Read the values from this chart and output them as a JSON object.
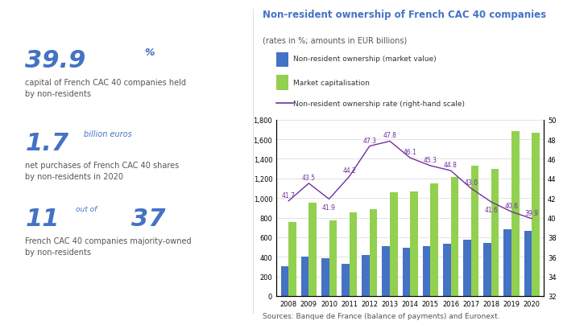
{
  "years": [
    2008,
    2009,
    2010,
    2011,
    2012,
    2013,
    2014,
    2015,
    2016,
    2017,
    2018,
    2019,
    2020
  ],
  "non_resident_ownership": [
    305,
    405,
    385,
    330,
    415,
    510,
    490,
    510,
    535,
    575,
    545,
    680,
    665
  ],
  "market_cap": [
    755,
    950,
    770,
    855,
    890,
    1060,
    1070,
    1145,
    1215,
    1330,
    1295,
    1680,
    1665
  ],
  "ownership_rate": [
    41.7,
    43.5,
    41.9,
    44.2,
    47.3,
    47.8,
    46.1,
    45.3,
    44.8,
    43.0,
    41.6,
    40.6,
    39.9
  ],
  "rate_labels": [
    "41.7",
    "43.5",
    "41.9",
    "44.2",
    "47.3",
    "47.8",
    "46.1",
    "45.3",
    "44.8",
    "43.0",
    "41.6",
    "40.6",
    "39.9"
  ],
  "bar_color_blue": "#4472c4",
  "bar_color_green": "#92d050",
  "line_color": "#7030a0",
  "title": "Non-resident ownership of French CAC 40 companies",
  "subtitle": "(rates in %; amounts in EUR billions)",
  "legend_blue": "Non-resident ownership (market value)",
  "legend_green": "Market capitalisation",
  "legend_line": "Non-resident ownership rate (right-hand scale)",
  "source": "Sources: Banque de France (balance of payments) and Euronext.",
  "ylim_left": [
    0,
    1800
  ],
  "ylim_right": [
    32,
    50
  ],
  "yticks_left": [
    0,
    200,
    400,
    600,
    800,
    1000,
    1200,
    1400,
    1600,
    1800
  ],
  "ytick_labels_left": [
    "0",
    "200",
    "400",
    "600",
    "800",
    "1,000",
    "1,200",
    "1,400",
    "1,600",
    "1,800"
  ],
  "yticks_right": [
    32,
    34,
    36,
    38,
    40,
    42,
    44,
    46,
    48,
    50
  ],
  "title_color": "#4472c4",
  "subtitle_color": "#404040",
  "stat1_big": "39.9",
  "stat1_sup": "%",
  "stat1_desc": "capital of French CAC 40 companies held\nby non-residents",
  "stat2_big": "1.7",
  "stat2_small": "billion euros",
  "stat2_desc": "net purchases of French CAC 40 shares\nby non-residents in 2020",
  "stat3_big1": "11",
  "stat3_mid": "out of",
  "stat3_big2": "37",
  "stat3_desc": "French CAC 40 companies majority-owned\nby non-residents",
  "big_color": "#4472c4",
  "small_color": "#4472c4",
  "desc_color": "#555555"
}
